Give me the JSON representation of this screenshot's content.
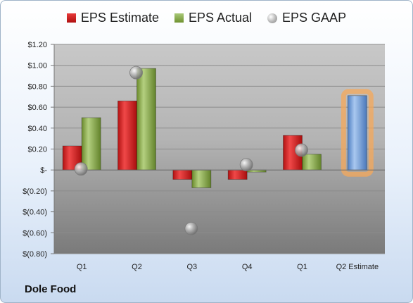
{
  "legend": {
    "estimate": "EPS Estimate",
    "actual": "EPS Actual",
    "gaap": "EPS GAAP"
  },
  "company": "Dole Food",
  "colors": {
    "estimate": "#d42424",
    "actual": "#86a844",
    "gaap": "#a8a8a8",
    "projection": "#7aa5dd",
    "projection_glow": "#f5a85a"
  },
  "chart_data": {
    "type": "bar",
    "categories": [
      "Q1",
      "Q2",
      "Q3",
      "Q4",
      "Q1",
      "Q2 Estimate"
    ],
    "series": [
      {
        "name": "EPS Estimate",
        "values": [
          0.23,
          0.66,
          -0.09,
          -0.09,
          0.33,
          null
        ]
      },
      {
        "name": "EPS Actual",
        "values": [
          0.5,
          0.97,
          -0.17,
          -0.02,
          0.15,
          null
        ]
      },
      {
        "name": "EPS GAAP",
        "values": [
          0.01,
          0.93,
          -0.56,
          0.05,
          0.19,
          null
        ]
      },
      {
        "name": "",
        "values": [
          null,
          null,
          null,
          null,
          null,
          0.71
        ]
      }
    ],
    "ylim": [
      -0.8,
      1.2
    ],
    "yticks": [
      1.2,
      1.0,
      0.8,
      0.6,
      0.4,
      0.2,
      0,
      -0.2,
      -0.4,
      -0.6,
      -0.8
    ],
    "ytick_labels": [
      "$1.20",
      "$1.00",
      "$0.80",
      "$0.60",
      "$0.40",
      "$0.20",
      "$-",
      "$(0.20)",
      "$(0.40)",
      "$(0.60)",
      "$(0.80)"
    ],
    "grid": true,
    "legend_position": "top"
  }
}
